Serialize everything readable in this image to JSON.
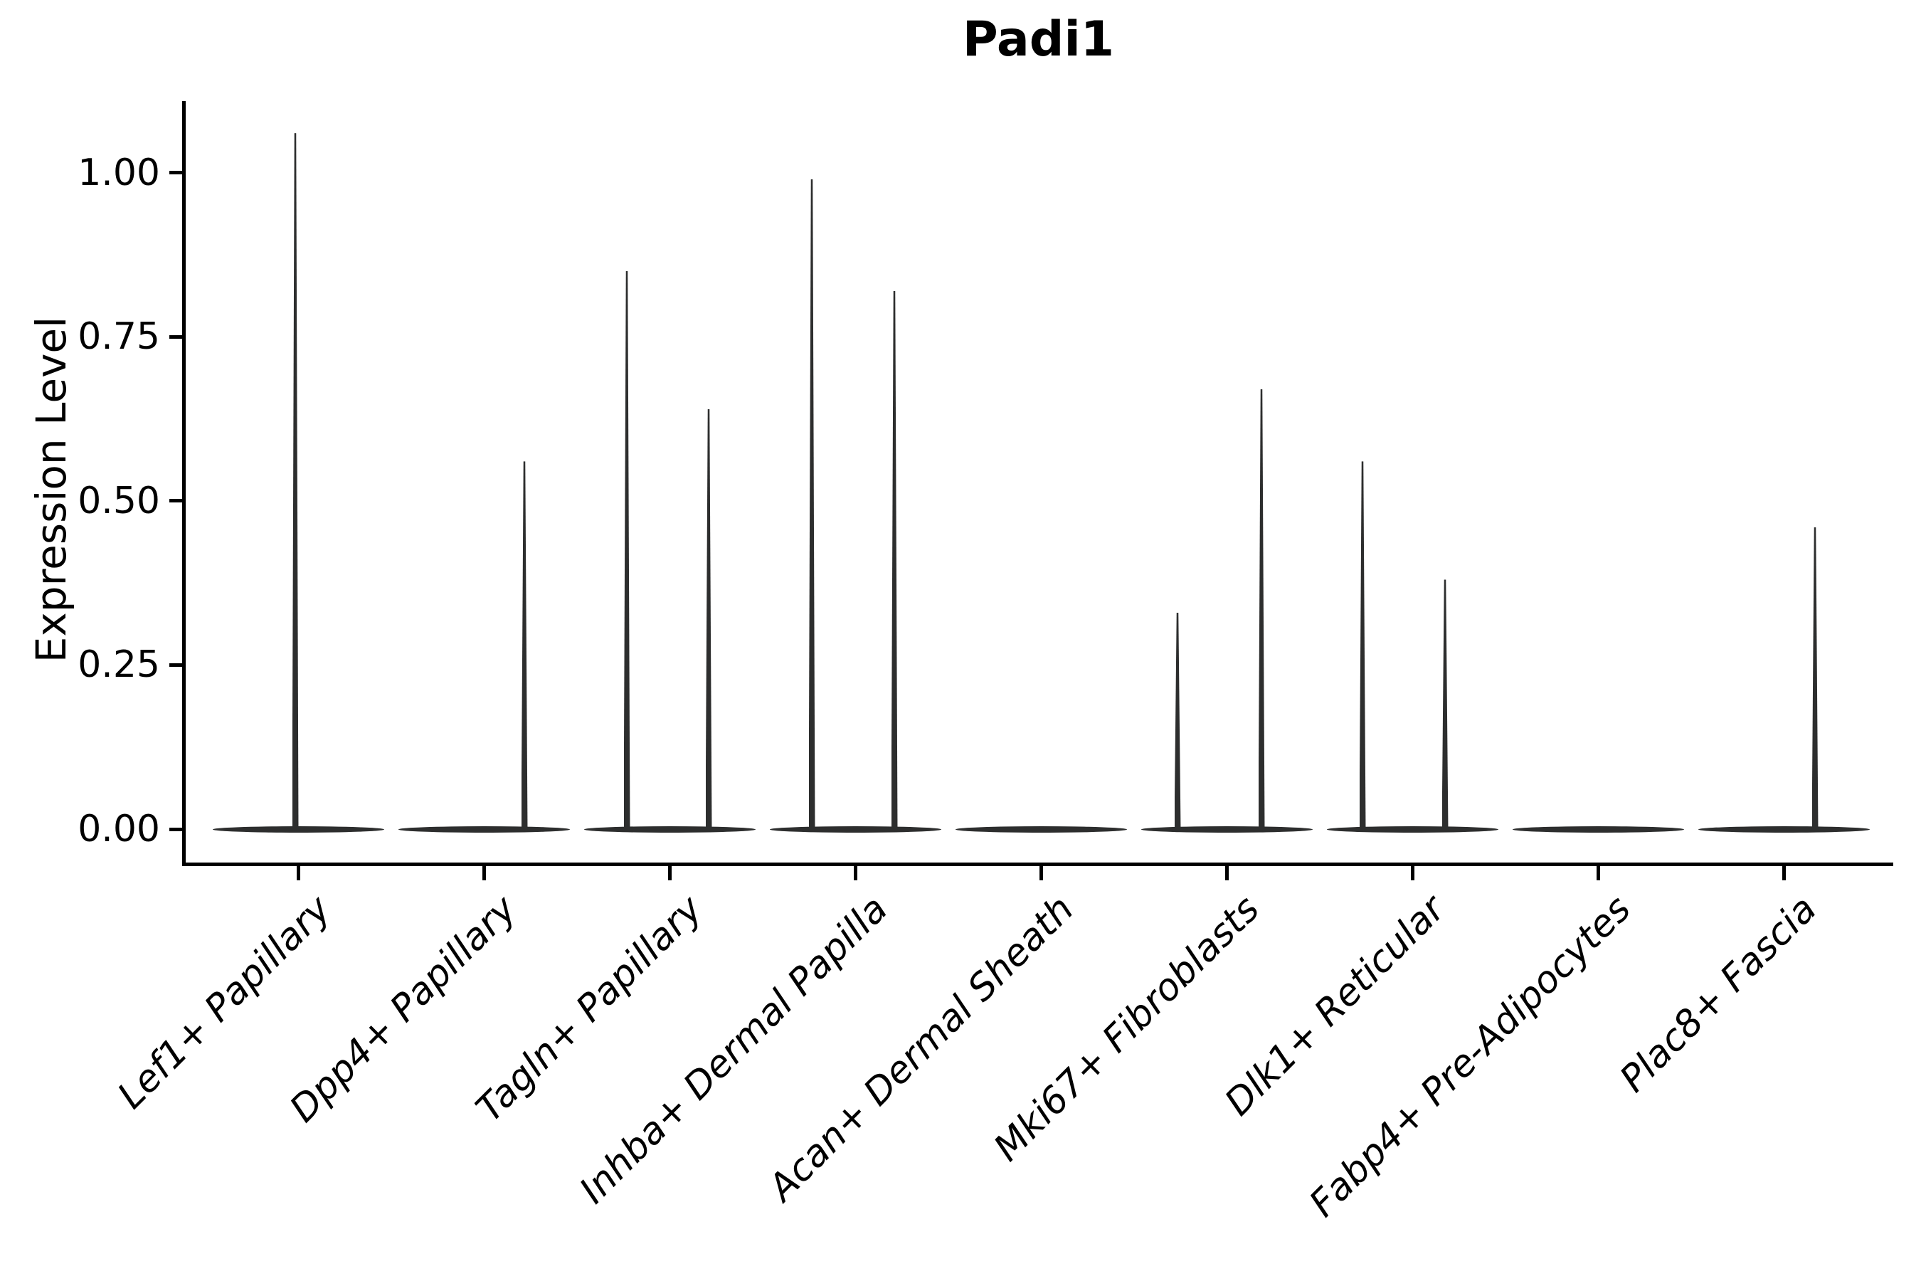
{
  "figure": {
    "title": "Padi1",
    "ylabel": "Expression Level"
  },
  "chart_data": {
    "type": "violin",
    "title": "Padi1",
    "xlabel": "",
    "ylabel": "Expression Level",
    "categories": [
      "Lef1+ Papillary",
      "Dpp4+ Papillary",
      "Tagln+ Papillary",
      "Inhba+ Dermal Papilla",
      "Acan+ Dermal Sheath",
      "Mki67+ Fibroblasts",
      "Dlk1+ Reticular",
      "Fabp4+ Pre-Adipocytes",
      "Plac8+ Fascia"
    ],
    "description": "Needle-thin violins: bulk of expression mass at 0 for every cluster (flat lens at baseline); sparse high-expressing cells form thin vertical needles up to the listed values.",
    "series": [
      {
        "category": "Lef1+ Papillary",
        "baseline_value": 0,
        "spikes": [
          {
            "value": 1.06,
            "dx": -4
          }
        ]
      },
      {
        "category": "Dpp4+ Papillary",
        "baseline_value": 0,
        "spikes": [
          {
            "value": 0.56,
            "dx": 57
          }
        ]
      },
      {
        "category": "Tagln+ Papillary",
        "baseline_value": 0,
        "spikes": [
          {
            "value": 0.85,
            "dx": -60
          },
          {
            "value": 0.64,
            "dx": 55
          }
        ]
      },
      {
        "category": "Inhba+ Dermal Papilla",
        "baseline_value": 0,
        "spikes": [
          {
            "value": 0.99,
            "dx": -61
          },
          {
            "value": 0.82,
            "dx": 55
          }
        ]
      },
      {
        "category": "Acan+ Dermal Sheath",
        "baseline_value": 0,
        "spikes": []
      },
      {
        "category": "Mki67+ Fibroblasts",
        "baseline_value": 0,
        "spikes": [
          {
            "value": 0.33,
            "dx": -69
          },
          {
            "value": 0.67,
            "dx": 49
          }
        ]
      },
      {
        "category": "Dlk1+ Reticular",
        "baseline_value": 0,
        "spikes": [
          {
            "value": 0.56,
            "dx": -70
          },
          {
            "value": 0.38,
            "dx": 46
          }
        ]
      },
      {
        "category": "Fabp4+ Pre-Adipocytes",
        "baseline_value": 0,
        "spikes": []
      },
      {
        "category": "Plac8+ Fascia",
        "baseline_value": 0,
        "spikes": [
          {
            "value": 0.46,
            "dx": 44
          }
        ]
      }
    ],
    "yticks": [
      {
        "value": 0.0,
        "label": "0.00"
      },
      {
        "value": 0.25,
        "label": "0.25"
      },
      {
        "value": 0.5,
        "label": "0.50"
      },
      {
        "value": 0.75,
        "label": "0.75"
      },
      {
        "value": 1.0,
        "label": "1.00"
      }
    ],
    "ylim": [
      -0.053,
      1.109
    ],
    "grid": false,
    "legend": "none",
    "colors": {
      "violin": "#2d2e2e",
      "axis": "#000000",
      "text": "#000000",
      "background": "#ffffff"
    }
  }
}
